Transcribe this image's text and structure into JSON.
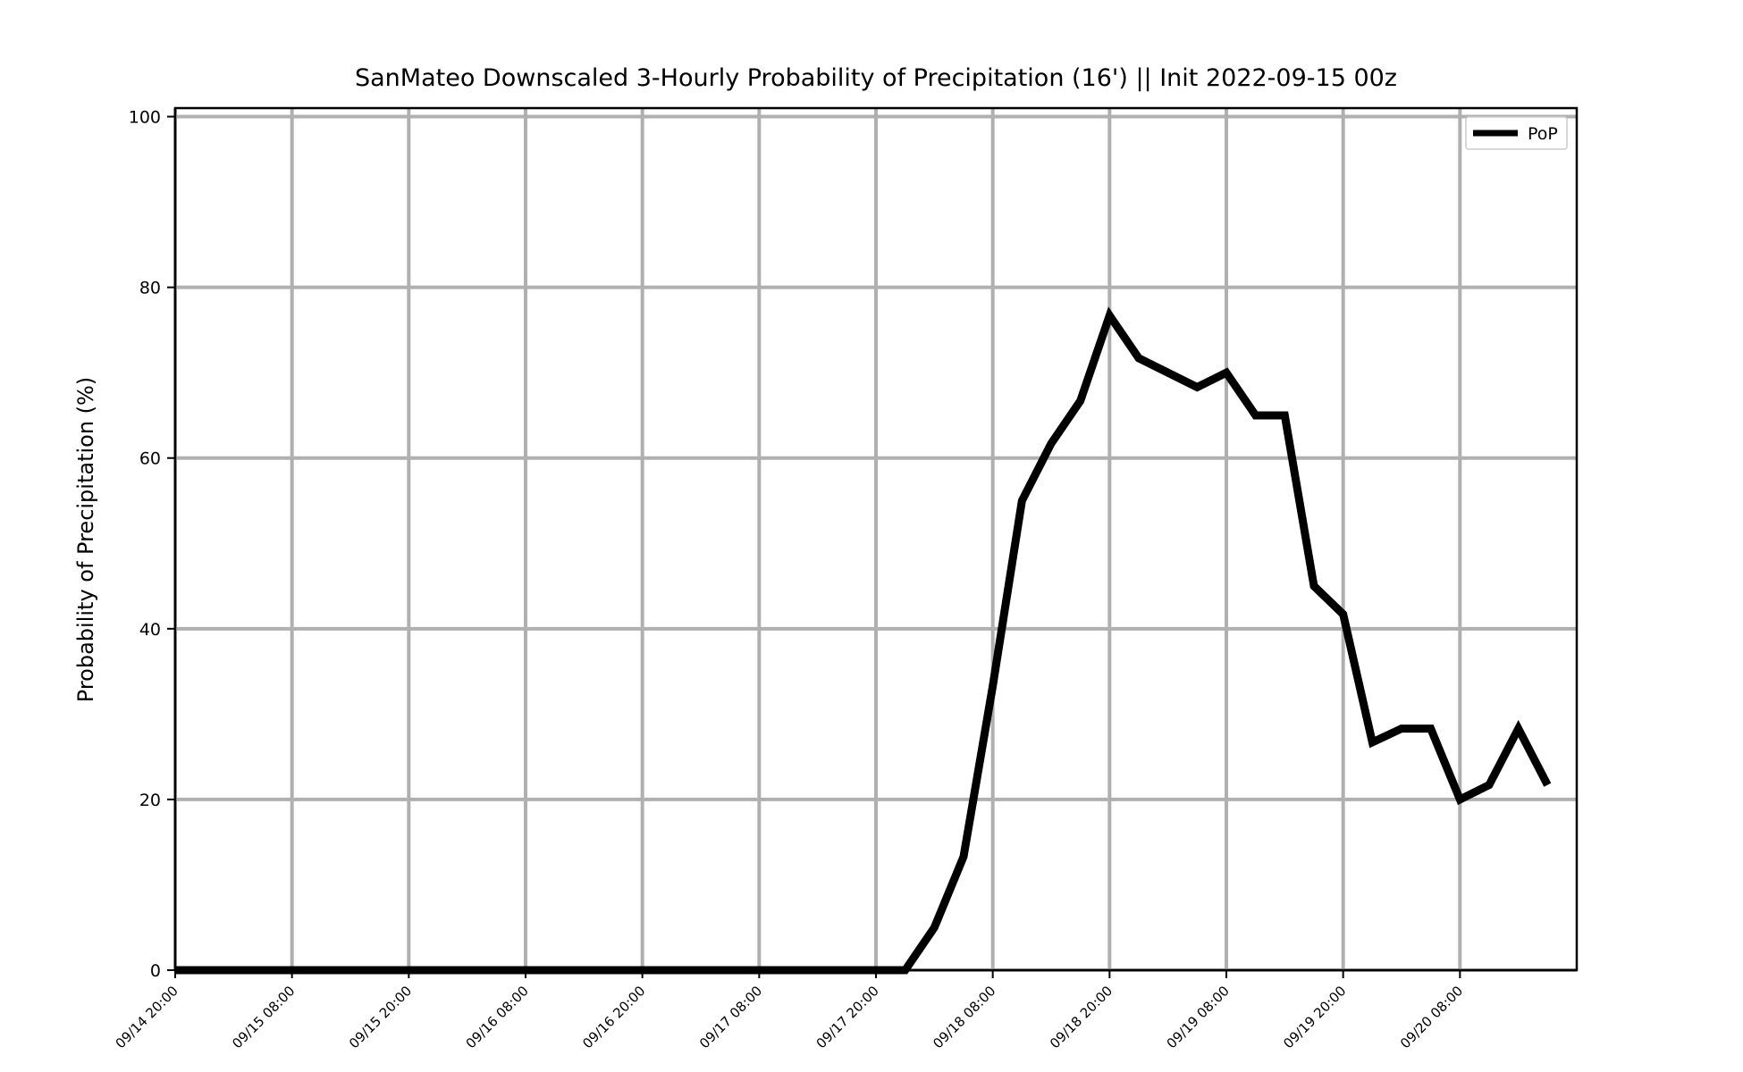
{
  "chart_data": {
    "type": "line",
    "title": "SanMateo Downscaled 3-Hourly Probability of Precipitation (16') || Init 2022-09-15 00z",
    "xlabel": "",
    "ylabel": "Probability of Precipitation (%)",
    "ylim": [
      0,
      101
    ],
    "xlim": [
      "09/14 20:00",
      "09/20 20:00"
    ],
    "y_ticks": [
      0,
      20,
      40,
      60,
      80,
      100
    ],
    "x_ticks": [
      "09/14 20:00",
      "09/15 08:00",
      "09/15 20:00",
      "09/16 08:00",
      "09/16 20:00",
      "09/17 08:00",
      "09/17 20:00",
      "09/18 08:00",
      "09/18 20:00",
      "09/19 08:00",
      "09/19 20:00",
      "09/20 08:00"
    ],
    "grid": true,
    "legend_position": "top-right",
    "series": [
      {
        "name": "PoP",
        "color": "#000000",
        "x": [
          "09/14 20:00",
          "09/14 23:00",
          "09/15 02:00",
          "09/15 05:00",
          "09/15 08:00",
          "09/15 11:00",
          "09/15 14:00",
          "09/15 17:00",
          "09/15 20:00",
          "09/15 23:00",
          "09/16 02:00",
          "09/16 05:00",
          "09/16 08:00",
          "09/16 11:00",
          "09/16 14:00",
          "09/16 17:00",
          "09/16 20:00",
          "09/16 23:00",
          "09/17 02:00",
          "09/17 05:00",
          "09/17 08:00",
          "09/17 11:00",
          "09/17 14:00",
          "09/17 17:00",
          "09/17 20:00",
          "09/17 23:00",
          "09/18 02:00",
          "09/18 05:00",
          "09/18 08:00",
          "09/18 11:00",
          "09/18 14:00",
          "09/18 17:00",
          "09/18 20:00",
          "09/18 23:00",
          "09/19 02:00",
          "09/19 05:00",
          "09/19 08:00",
          "09/19 11:00",
          "09/19 14:00",
          "09/19 17:00",
          "09/19 20:00",
          "09/19 23:00",
          "09/20 02:00",
          "09/20 05:00",
          "09/20 08:00",
          "09/20 11:00",
          "09/20 14:00",
          "09/20 17:00"
        ],
        "values": [
          0,
          0,
          0,
          0,
          0,
          0,
          0,
          0,
          0,
          0,
          0,
          0,
          0,
          0,
          0,
          0,
          0,
          0,
          0,
          0,
          0,
          0,
          0,
          0,
          0,
          0,
          5,
          13.3,
          33.3,
          55,
          61.7,
          66.7,
          76.7,
          71.7,
          70,
          68.3,
          70,
          65,
          65,
          45,
          41.7,
          26.7,
          28.3,
          28.3,
          20,
          21.7,
          28.3,
          21.7
        ]
      }
    ]
  }
}
